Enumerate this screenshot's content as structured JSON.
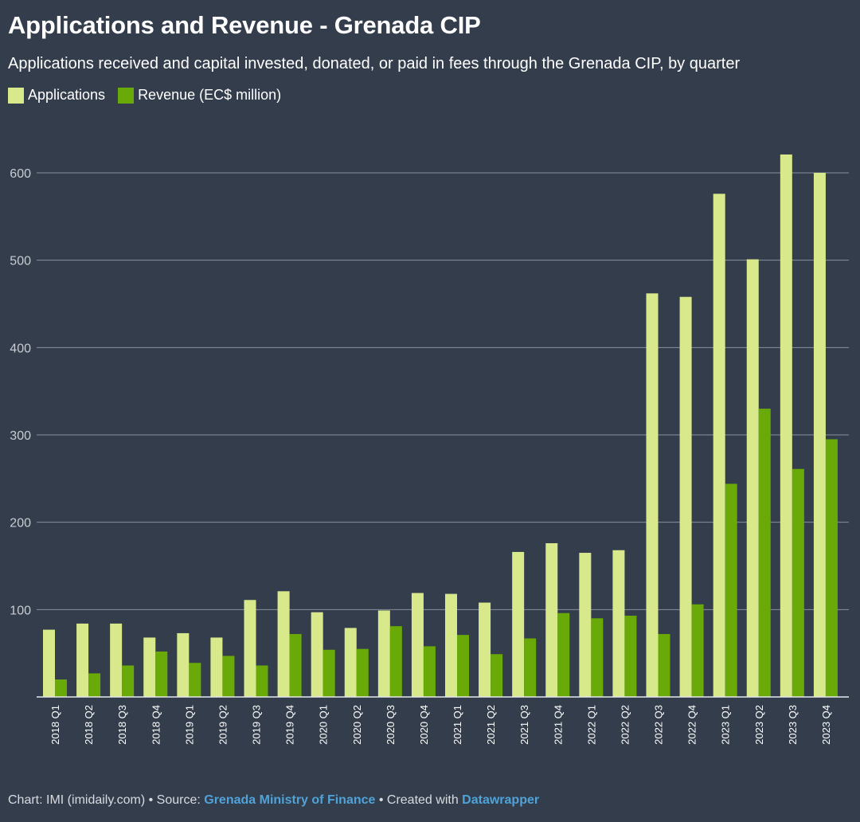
{
  "title": "Applications and Revenue - Grenada CIP",
  "subtitle": "Applications received and capital invested, donated, or paid in fees through the Grenada CIP, by quarter",
  "colors": {
    "applications": "#d8e98b",
    "revenue": "#6aaa08",
    "background": "#333d4c",
    "gridline": "#8a919c",
    "tick_text": "#c9ccd2"
  },
  "chart_data": {
    "type": "bar",
    "title": "Applications and Revenue - Grenada CIP",
    "xlabel": "",
    "ylabel": "",
    "ylim": [
      0,
      650
    ],
    "yticks": [
      100,
      200,
      300,
      400,
      500,
      600
    ],
    "grid": true,
    "legend_position": "top-left",
    "categories": [
      "2018 Q1",
      "2018 Q2",
      "2018 Q3",
      "2018 Q4",
      "2019 Q1",
      "2019 Q2",
      "2019 Q3",
      "2019 Q4",
      "2020 Q1",
      "2020 Q2",
      "2020 Q3",
      "2020 Q4",
      "2021 Q1",
      "2021 Q2",
      "2021 Q3",
      "2021 Q4",
      "2022 Q1",
      "2022 Q2",
      "2022 Q3",
      "2022 Q4",
      "2023 Q1",
      "2023 Q2",
      "2023 Q3",
      "2023 Q4"
    ],
    "series": [
      {
        "name": "Applications",
        "values": [
          77,
          84,
          84,
          68,
          73,
          68,
          111,
          121,
          97,
          79,
          99,
          119,
          118,
          108,
          166,
          176,
          165,
          168,
          462,
          458,
          576,
          501,
          621,
          600
        ]
      },
      {
        "name": "Revenue (EC$ million)",
        "values": [
          20,
          27,
          36,
          52,
          39,
          47,
          36,
          72,
          54,
          55,
          81,
          58,
          71,
          49,
          67,
          96,
          90,
          93,
          72,
          106,
          244,
          330,
          261,
          295
        ]
      }
    ]
  },
  "footer": {
    "prefix": "Chart: IMI (imidaily.com) • Source: ",
    "source": "Grenada Ministry of Finance",
    "middle": " • Created with ",
    "tool": "Datawrapper"
  }
}
